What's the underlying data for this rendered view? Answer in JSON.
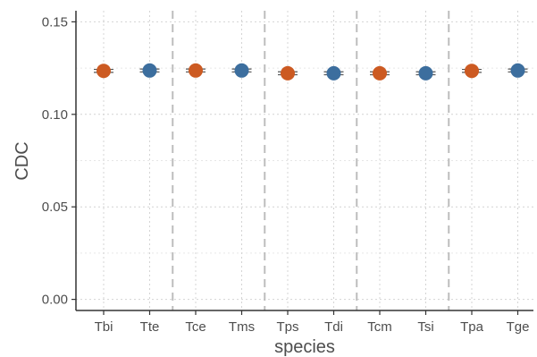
{
  "chart_data": {
    "type": "scatter",
    "title": "",
    "xlabel": "species",
    "ylabel": "CDC",
    "categories": [
      "Tbi",
      "Tte",
      "Tce",
      "Tms",
      "Tps",
      "Tdi",
      "Tcm",
      "Tsi",
      "Tpa",
      "Tge"
    ],
    "values": [
      0.1235,
      0.1237,
      0.1237,
      0.1237,
      0.1222,
      0.1222,
      0.1222,
      0.1222,
      0.1235,
      0.1237
    ],
    "error_half_width": 0.0008,
    "point_groups": [
      "orange",
      "blue",
      "orange",
      "blue",
      "orange",
      "blue",
      "orange",
      "blue",
      "orange",
      "blue"
    ],
    "colors": {
      "orange": "#cc5a22",
      "blue": "#3c6e9e"
    },
    "ylim": [
      -0.006,
      0.156
    ],
    "yticks": [
      0.0,
      0.05,
      0.1,
      0.15
    ],
    "ytick_labels": [
      "0.00",
      "0.05",
      "0.10",
      "0.15"
    ],
    "pair_separators_after": [
      2,
      4,
      6,
      8
    ],
    "grid": true,
    "legend": "none"
  }
}
